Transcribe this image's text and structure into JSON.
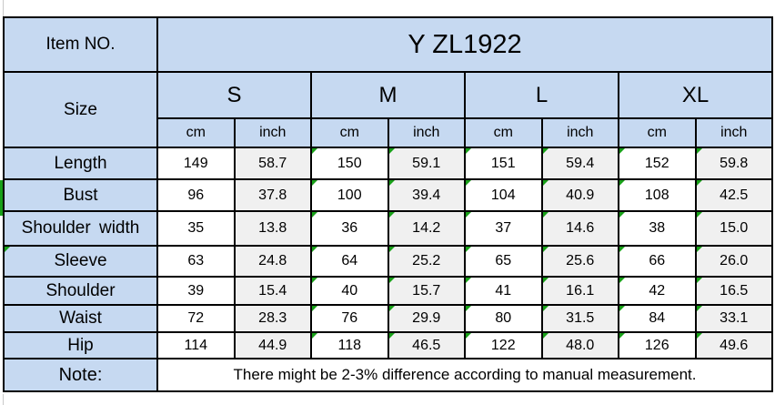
{
  "table": {
    "item_no_label": "Item NO.",
    "item_no_value": "Y ZL1922",
    "size_label": "Size",
    "sizes": [
      "S",
      "M",
      "L",
      "XL"
    ],
    "units": [
      "cm",
      "inch"
    ],
    "rows": [
      {
        "label": "Length",
        "values": [
          "149",
          "58.7",
          "150",
          "59.1",
          "151",
          "59.4",
          "152",
          "59.8"
        ]
      },
      {
        "label": "Bust",
        "values": [
          "96",
          "37.8",
          "100",
          "39.4",
          "104",
          "40.9",
          "108",
          "42.5"
        ]
      },
      {
        "label": "Shoulder width",
        "values": [
          "35",
          "13.8",
          "36",
          "14.2",
          "37",
          "14.6",
          "38",
          "15.0"
        ]
      },
      {
        "label": "Sleeve",
        "values": [
          "63",
          "24.8",
          "64",
          "25.2",
          "65",
          "25.6",
          "66",
          "26.0"
        ]
      },
      {
        "label": "Shoulder",
        "values": [
          "39",
          "15.4",
          "40",
          "15.7",
          "41",
          "16.1",
          "42",
          "16.5"
        ]
      },
      {
        "label": "Waist",
        "values": [
          "72",
          "28.3",
          "76",
          "29.9",
          "80",
          "31.5",
          "84",
          "33.1"
        ]
      },
      {
        "label": "Hip",
        "values": [
          "114",
          "44.9",
          "118",
          "46.5",
          "122",
          "48.0",
          "126",
          "49.6"
        ]
      }
    ],
    "note_label": "Note:",
    "note_text": "There might be 2-3% difference according to manual measurement."
  },
  "colors": {
    "header_fill": "#c6d9f1",
    "inch_column_fill": "#f0f0f0",
    "border": "#000000",
    "flag_green": "#18a018"
  }
}
